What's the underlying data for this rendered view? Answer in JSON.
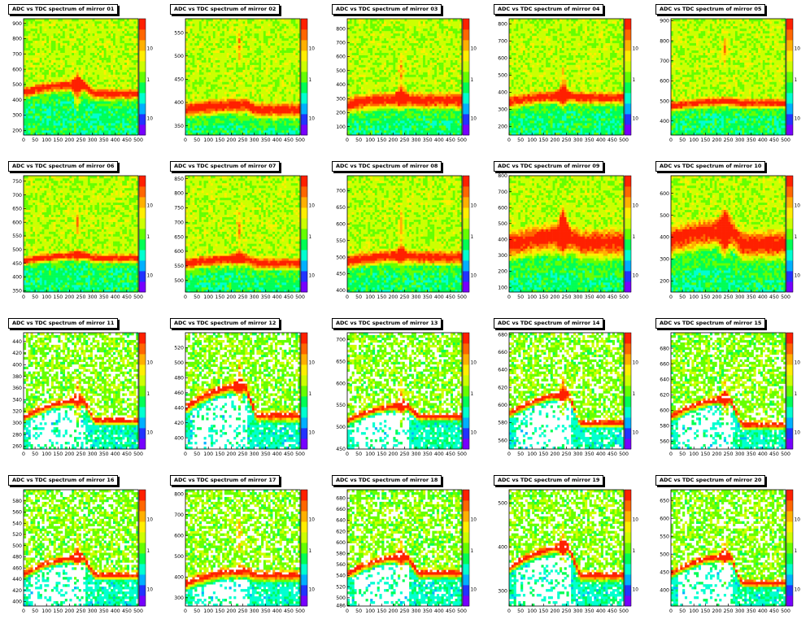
{
  "title_prefix": "ADC vs TDC spectrum of mirror",
  "palette": [
    "#7700ff",
    "#2233ff",
    "#00b0ff",
    "#00ffd0",
    "#00ff55",
    "#66ff00",
    "#ccff00",
    "#ffee00",
    "#ffb000",
    "#ff6600",
    "#ff2000"
  ],
  "chart_data": [
    {
      "type": "heatmap",
      "title": "ADC vs TDC spectrum of mirror 01",
      "xlim": [
        0,
        500
      ],
      "xticks": [
        0,
        50,
        100,
        150,
        200,
        250,
        300,
        350,
        400,
        450,
        500
      ],
      "ylim": [
        170,
        930
      ],
      "yticks": [
        200,
        300,
        400,
        500,
        600,
        700,
        800,
        900
      ],
      "zticks": [
        "10",
        "1",
        "10"
      ],
      "ridge": {
        "base": 500,
        "peak": 500,
        "after": 440,
        "spread": 45
      }
    },
    {
      "type": "heatmap",
      "title": "ADC vs TDC spectrum of mirror 02",
      "xlim": [
        0,
        500
      ],
      "xticks": [
        0,
        50,
        100,
        150,
        200,
        250,
        300,
        350,
        400,
        450,
        500
      ],
      "ylim": [
        330,
        580
      ],
      "yticks": [
        350,
        400,
        450,
        500,
        550
      ],
      "zticks": [
        "10",
        "1",
        "10"
      ],
      "ridge": {
        "base": 395,
        "peak": 520,
        "after": 385,
        "spread": 20
      }
    },
    {
      "type": "heatmap",
      "title": "ADC vs TDC spectrum of mirror 03",
      "xlim": [
        0,
        500
      ],
      "xticks": [
        0,
        50,
        100,
        150,
        200,
        250,
        300,
        350,
        400,
        450,
        500
      ],
      "ylim": [
        40,
        870
      ],
      "yticks": [
        100,
        200,
        300,
        400,
        500,
        600,
        700,
        800
      ],
      "zticks": [
        "10",
        "1",
        "10"
      ],
      "ridge": {
        "base": 300,
        "peak": 500,
        "after": 290,
        "spread": 70
      }
    },
    {
      "type": "heatmap",
      "title": "ADC vs TDC spectrum of mirror 04",
      "xlim": [
        0,
        500
      ],
      "xticks": [
        0,
        50,
        100,
        150,
        200,
        250,
        300,
        350,
        400,
        450,
        500
      ],
      "ylim": [
        150,
        830
      ],
      "yticks": [
        200,
        300,
        400,
        500,
        600,
        700,
        800
      ],
      "zticks": [
        "10",
        "1",
        "10"
      ],
      "ridge": {
        "base": 380,
        "peak": 460,
        "after": 370,
        "spread": 45
      }
    },
    {
      "type": "heatmap",
      "title": "ADC vs TDC spectrum of mirror 05",
      "xlim": [
        0,
        500
      ],
      "xticks": [
        0,
        50,
        100,
        150,
        200,
        250,
        300,
        350,
        400,
        450,
        500
      ],
      "ylim": [
        330,
        910
      ],
      "yticks": [
        400,
        500,
        600,
        700,
        800,
        900
      ],
      "zticks": [
        "10",
        "1",
        "10"
      ],
      "ridge": {
        "base": 500,
        "peak": 750,
        "after": 490,
        "spread": 30
      }
    },
    {
      "type": "heatmap",
      "title": "ADC vs TDC spectrum of mirror 06",
      "xlim": [
        0,
        500
      ],
      "xticks": [
        0,
        50,
        100,
        150,
        200,
        250,
        300,
        350,
        400,
        450,
        500
      ],
      "ylim": [
        345,
        770
      ],
      "yticks": [
        350,
        400,
        450,
        500,
        550,
        600,
        650,
        700,
        750
      ],
      "zticks": [
        "10",
        "1",
        "10"
      ],
      "ridge": {
        "base": 480,
        "peak": 600,
        "after": 470,
        "spread": 20
      }
    },
    {
      "type": "heatmap",
      "title": "ADC vs TDC spectrum of mirror 07",
      "xlim": [
        0,
        500
      ],
      "xticks": [
        0,
        50,
        100,
        150,
        200,
        250,
        300,
        350,
        400,
        450,
        500
      ],
      "ylim": [
        460,
        860
      ],
      "yticks": [
        500,
        550,
        600,
        650,
        700,
        750,
        800,
        850
      ],
      "zticks": [
        "10",
        "1",
        "10"
      ],
      "ridge": {
        "base": 575,
        "peak": 690,
        "after": 560,
        "spread": 25
      }
    },
    {
      "type": "heatmap",
      "title": "ADC vs TDC spectrum of mirror 08",
      "xlim": [
        0,
        500
      ],
      "xticks": [
        0,
        50,
        100,
        150,
        200,
        250,
        300,
        350,
        400,
        450,
        500
      ],
      "ylim": [
        395,
        745
      ],
      "yticks": [
        400,
        450,
        500,
        550,
        600,
        650,
        700
      ],
      "zticks": [
        "10",
        "1",
        "10"
      ],
      "ridge": {
        "base": 505,
        "peak": 590,
        "after": 500,
        "spread": 25
      }
    },
    {
      "type": "heatmap",
      "title": "ADC vs TDC spectrum of mirror 09",
      "xlim": [
        0,
        500
      ],
      "xticks": [
        0,
        50,
        100,
        150,
        200,
        250,
        300,
        350,
        400,
        450,
        500
      ],
      "ylim": [
        70,
        800
      ],
      "yticks": [
        100,
        200,
        300,
        400,
        500,
        600,
        700,
        800
      ],
      "zticks": [
        "10",
        "1",
        "10"
      ],
      "ridge": {
        "base": 420,
        "peak": 500,
        "after": 380,
        "spread": 110
      }
    },
    {
      "type": "heatmap",
      "title": "ADC vs TDC spectrum of mirror 10",
      "xlim": [
        0,
        500
      ],
      "xticks": [
        0,
        50,
        100,
        150,
        200,
        250,
        300,
        350,
        400,
        450,
        500
      ],
      "ylim": [
        150,
        680
      ],
      "yticks": [
        200,
        300,
        400,
        500,
        600
      ],
      "zticks": [
        "10",
        "1",
        "10"
      ],
      "ridge": {
        "base": 430,
        "peak": 440,
        "after": 370,
        "spread": 80
      }
    },
    {
      "type": "heatmap",
      "title": "ADC vs TDC spectrum of mirror 11",
      "xlim": [
        0,
        500
      ],
      "xticks": [
        0,
        50,
        100,
        150,
        200,
        250,
        300,
        350,
        400,
        450,
        500
      ],
      "ylim": [
        255,
        455
      ],
      "yticks": [
        260,
        280,
        300,
        320,
        340,
        360,
        380,
        400,
        420,
        440
      ],
      "zticks": [
        "10",
        "1",
        "10"
      ],
      "ridge": {
        "base": 340,
        "peak": 345,
        "after": 305,
        "spread": 8
      }
    },
    {
      "type": "heatmap",
      "title": "ADC vs TDC spectrum of mirror 12",
      "xlim": [
        0,
        500
      ],
      "xticks": [
        0,
        50,
        100,
        150,
        200,
        250,
        300,
        350,
        400,
        450,
        500
      ],
      "ylim": [
        385,
        540
      ],
      "yticks": [
        400,
        420,
        440,
        460,
        480,
        500,
        520
      ],
      "zticks": [
        "10",
        "1",
        "10"
      ],
      "ridge": {
        "base": 470,
        "peak": 480,
        "after": 430,
        "spread": 8
      }
    },
    {
      "type": "heatmap",
      "title": "ADC vs TDC spectrum of mirror 13",
      "xlim": [
        0,
        500
      ],
      "xticks": [
        0,
        50,
        100,
        150,
        200,
        250,
        300,
        350,
        400,
        450,
        500
      ],
      "ylim": [
        450,
        715
      ],
      "yticks": [
        450,
        500,
        550,
        600,
        650,
        700
      ],
      "zticks": [
        "10",
        "1",
        "10"
      ],
      "ridge": {
        "base": 550,
        "peak": 560,
        "after": 525,
        "spread": 10
      }
    },
    {
      "type": "heatmap",
      "title": "ADC vs TDC spectrum of mirror 14",
      "xlim": [
        0,
        500
      ],
      "xticks": [
        0,
        50,
        100,
        150,
        200,
        250,
        300,
        350,
        400,
        450,
        500
      ],
      "ylim": [
        550,
        682
      ],
      "yticks": [
        560,
        580,
        600,
        620,
        640,
        660,
        680
      ],
      "zticks": [
        "10",
        "1",
        "10"
      ],
      "ridge": {
        "base": 612,
        "peak": 616,
        "after": 580,
        "spread": 5
      }
    },
    {
      "type": "heatmap",
      "title": "ADC vs TDC spectrum of mirror 15",
      "xlim": [
        0,
        500
      ],
      "xticks": [
        0,
        50,
        100,
        150,
        200,
        250,
        300,
        350,
        400,
        450,
        500
      ],
      "ylim": [
        550,
        700
      ],
      "yticks": [
        560,
        580,
        600,
        620,
        640,
        660,
        680
      ],
      "zticks": [
        "10",
        "1",
        "10"
      ],
      "ridge": {
        "base": 615,
        "peak": 620,
        "after": 582,
        "spread": 6
      }
    },
    {
      "type": "heatmap",
      "title": "ADC vs TDC spectrum of mirror 16",
      "xlim": [
        0,
        500
      ],
      "xticks": [
        0,
        50,
        100,
        150,
        200,
        250,
        300,
        350,
        400,
        450,
        500
      ],
      "ylim": [
        392,
        600
      ],
      "yticks": [
        400,
        420,
        440,
        460,
        480,
        500,
        520,
        540,
        560,
        580
      ],
      "zticks": [
        "10",
        "1",
        "10"
      ],
      "ridge": {
        "base": 480,
        "peak": 485,
        "after": 448,
        "spread": 8
      }
    },
    {
      "type": "heatmap",
      "title": "ADC vs TDC spectrum of mirror 17",
      "xlim": [
        0,
        500
      ],
      "xticks": [
        0,
        50,
        100,
        150,
        200,
        250,
        300,
        350,
        400,
        450,
        500
      ],
      "ylim": [
        260,
        820
      ],
      "yticks": [
        300,
        400,
        500,
        600,
        700,
        800
      ],
      "zticks": [
        "10",
        "1",
        "10"
      ],
      "ridge": {
        "base": 430,
        "peak": 600,
        "after": 410,
        "spread": 30
      }
    },
    {
      "type": "heatmap",
      "title": "ADC vs TDC spectrum of mirror 18",
      "xlim": [
        0,
        500
      ],
      "xticks": [
        0,
        50,
        100,
        150,
        200,
        250,
        300,
        350,
        400,
        450,
        500
      ],
      "ylim": [
        485,
        695
      ],
      "yticks": [
        486,
        500,
        520,
        540,
        560,
        580,
        600,
        620,
        640,
        660,
        680
      ],
      "zticks": [
        "10",
        "1",
        "10"
      ],
      "ridge": {
        "base": 575,
        "peak": 580,
        "after": 545,
        "spread": 9
      }
    },
    {
      "type": "heatmap",
      "title": "ADC vs TDC spectrum of mirror 19",
      "xlim": [
        0,
        500
      ],
      "xticks": [
        0,
        50,
        100,
        150,
        200,
        250,
        300,
        350,
        400,
        450,
        500
      ],
      "ylim": [
        265,
        530
      ],
      "yticks": [
        300,
        400,
        500
      ],
      "zticks": [
        "10",
        "1",
        "10"
      ],
      "ridge": {
        "base": 400,
        "peak": 405,
        "after": 335,
        "spread": 12
      }
    },
    {
      "type": "heatmap",
      "title": "ADC vs TDC spectrum of mirror 20",
      "xlim": [
        0,
        500
      ],
      "xticks": [
        0,
        50,
        100,
        150,
        200,
        250,
        300,
        350,
        400,
        450,
        500
      ],
      "ylim": [
        355,
        680
      ],
      "yticks": [
        400,
        450,
        500,
        550,
        600,
        650
      ],
      "zticks": [
        "10",
        "1",
        "10"
      ],
      "ridge": {
        "base": 495,
        "peak": 500,
        "after": 420,
        "spread": 12
      }
    }
  ]
}
